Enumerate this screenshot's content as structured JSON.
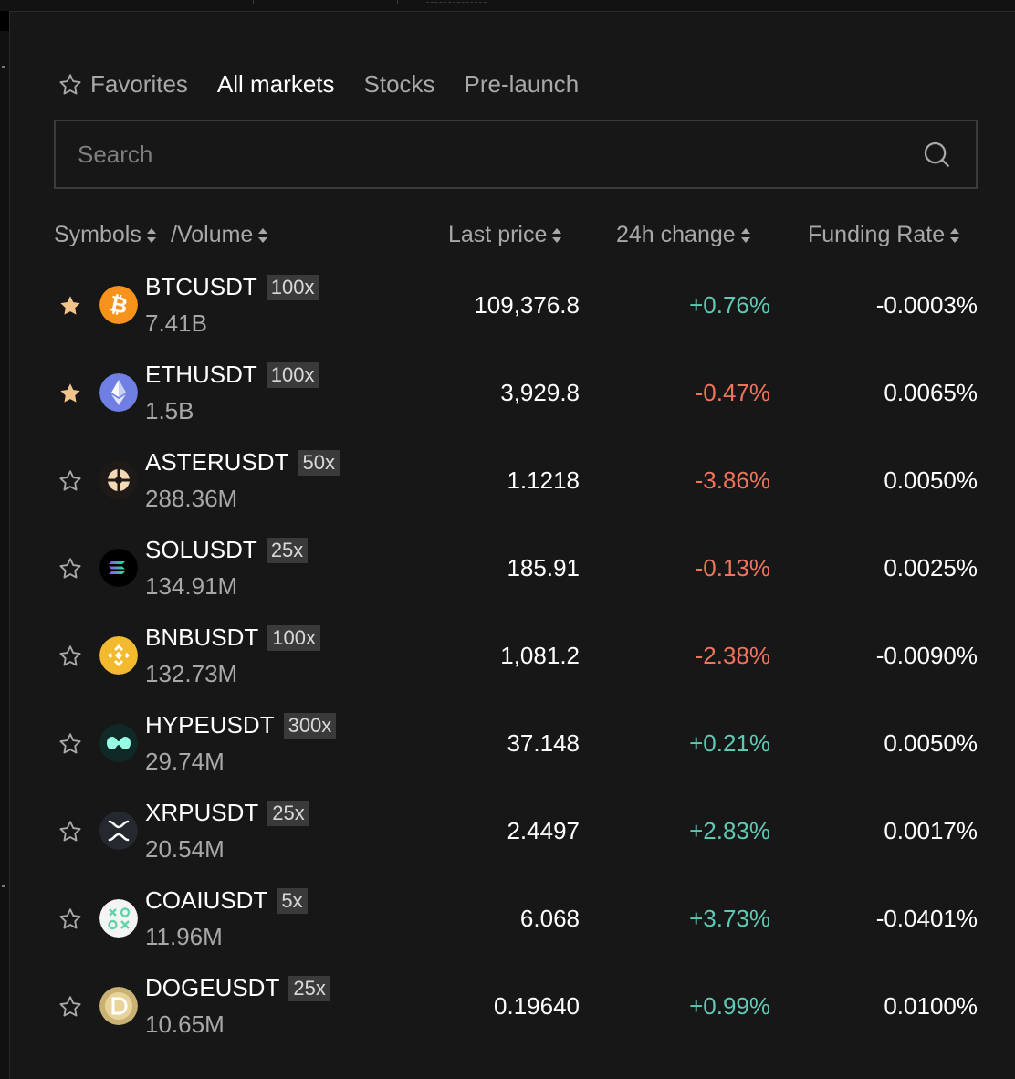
{
  "tabs": [
    {
      "label": "Favorites",
      "icon": "star-outline-icon"
    },
    {
      "label": "All markets",
      "active": true
    },
    {
      "label": "Stocks"
    },
    {
      "label": "Pre-launch"
    }
  ],
  "search": {
    "placeholder": "Search"
  },
  "columns": {
    "symbols": "Symbols",
    "volume": "/Volume",
    "last_price": "Last price",
    "change": "24h change",
    "funding": "Funding Rate"
  },
  "colors": {
    "up": "#5ec9b5",
    "down": "#f0745c",
    "favorite": "#f2c48a"
  },
  "rows": [
    {
      "symbol": "BTCUSDT",
      "leverage": "100x",
      "volume": "7.41B",
      "price": "109,376.8",
      "change": "+0.76%",
      "direction": "up",
      "funding": "-0.0003%",
      "favorite": true,
      "icon": "bitcoin-icon"
    },
    {
      "symbol": "ETHUSDT",
      "leverage": "100x",
      "volume": "1.5B",
      "price": "3,929.8",
      "change": "-0.47%",
      "direction": "down",
      "funding": "0.0065%",
      "favorite": true,
      "icon": "ethereum-icon"
    },
    {
      "symbol": "ASTERUSDT",
      "leverage": "50x",
      "volume": "288.36M",
      "price": "1.1218",
      "change": "-3.86%",
      "direction": "down",
      "funding": "0.0050%",
      "favorite": false,
      "icon": "aster-icon"
    },
    {
      "symbol": "SOLUSDT",
      "leverage": "25x",
      "volume": "134.91M",
      "price": "185.91",
      "change": "-0.13%",
      "direction": "down",
      "funding": "0.0025%",
      "favorite": false,
      "icon": "solana-icon"
    },
    {
      "symbol": "BNBUSDT",
      "leverage": "100x",
      "volume": "132.73M",
      "price": "1,081.2",
      "change": "-2.38%",
      "direction": "down",
      "funding": "-0.0090%",
      "favorite": false,
      "icon": "bnb-icon"
    },
    {
      "symbol": "HYPEUSDT",
      "leverage": "300x",
      "volume": "29.74M",
      "price": "37.148",
      "change": "+0.21%",
      "direction": "up",
      "funding": "0.0050%",
      "favorite": false,
      "icon": "hyperliquid-icon"
    },
    {
      "symbol": "XRPUSDT",
      "leverage": "25x",
      "volume": "20.54M",
      "price": "2.4497",
      "change": "+2.83%",
      "direction": "up",
      "funding": "0.0017%",
      "favorite": false,
      "icon": "xrp-icon"
    },
    {
      "symbol": "COAIUSDT",
      "leverage": "5x",
      "volume": "11.96M",
      "price": "6.068",
      "change": "+3.73%",
      "direction": "up",
      "funding": "-0.0401%",
      "favorite": false,
      "icon": "coai-icon"
    },
    {
      "symbol": "DOGEUSDT",
      "leverage": "25x",
      "volume": "10.65M",
      "price": "0.19640",
      "change": "+0.99%",
      "direction": "up",
      "funding": "0.0100%",
      "favorite": false,
      "icon": "dogecoin-icon"
    }
  ]
}
